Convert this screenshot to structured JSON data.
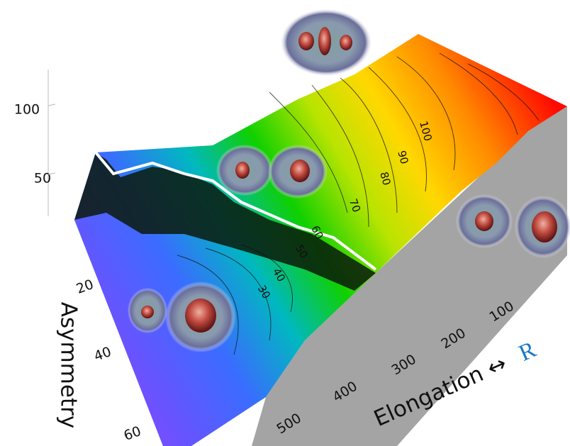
{
  "chart_data": {
    "type": "surface",
    "z_axis": {
      "ticks": [
        50,
        100
      ]
    },
    "y_axis": {
      "label": "Asymmetry",
      "ticks": [
        20,
        40,
        60
      ]
    },
    "x_axis": {
      "label": "Elongation ↔",
      "symbol": "R",
      "ticks": [
        100,
        200,
        300,
        400,
        500
      ]
    },
    "contour_labels": [
      30,
      40,
      50,
      60,
      70,
      80,
      90,
      100
    ]
  }
}
